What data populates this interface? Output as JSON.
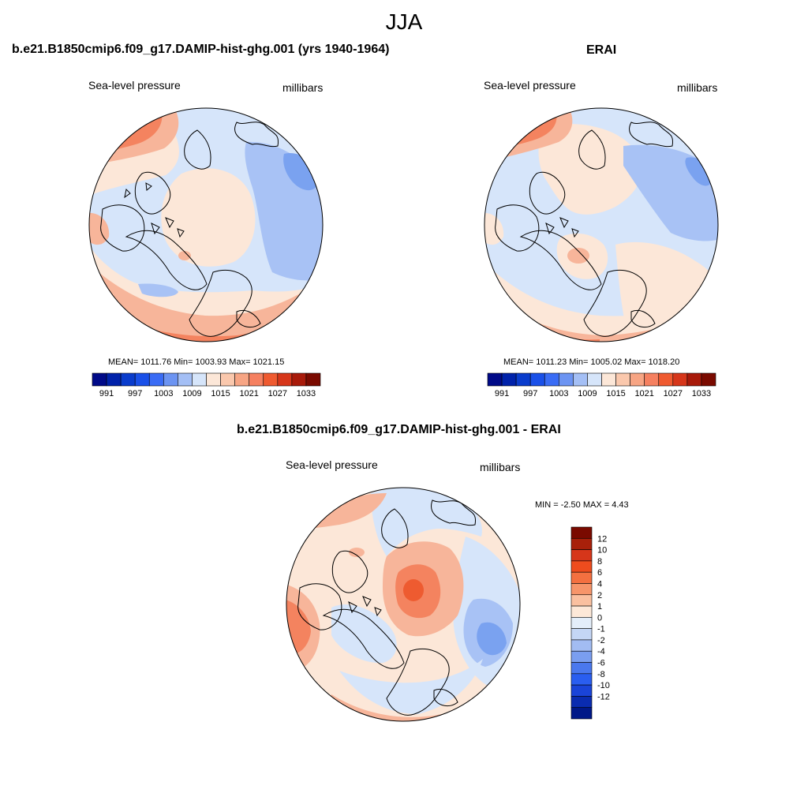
{
  "figure": {
    "season": "JJA"
  },
  "panels": [
    {
      "title": "b.e21.B1850cmip6.f09_g17.DAMIP-hist-ghg.001 (yrs 1940-1964)",
      "left_label": "Sea-level pressure",
      "right_label": "millibars",
      "stats": "MEAN= 1011.76  Min= 1003.93  Max= 1021.15"
    },
    {
      "title": "ERAI",
      "left_label": "Sea-level pressure",
      "right_label": "millibars",
      "stats": "MEAN= 1011.23  Min= 1005.02  Max= 1018.20"
    },
    {
      "title": "b.e21.B1850cmip6.f09_g17.DAMIP-hist-ghg.001 - ERAI",
      "left_label": "Sea-level pressure",
      "right_label": "millibars",
      "stats": "MIN =  -2.50 MAX =   4.43"
    }
  ],
  "colorbars": {
    "absolute": {
      "orientation": "horizontal",
      "colors": [
        "#000a88",
        "#0022aa",
        "#0a3ccc",
        "#1a50e8",
        "#3a6cf5",
        "#6c94f2",
        "#a4bff5",
        "#d6e5fa",
        "#fce7d8",
        "#fac8ad",
        "#f7a584",
        "#f58060",
        "#ef5a30",
        "#d6361a",
        "#a81a0a",
        "#7a0a00"
      ],
      "tick_labels": [
        "991",
        "997",
        "1003",
        "1009",
        "1015",
        "1021",
        "1027",
        "1033"
      ]
    },
    "difference": {
      "orientation": "vertical",
      "colors": [
        "#7a0a00",
        "#a8200a",
        "#d6361a",
        "#ee4c1e",
        "#f47040",
        "#f7956a",
        "#fac0a0",
        "#fde8d8",
        "#e4eefa",
        "#c4d6f5",
        "#a2bcf2",
        "#7a9ef0",
        "#4a78ee",
        "#2a5ef0",
        "#1a44d8",
        "#0a2cb0",
        "#001888"
      ],
      "tick_labels": [
        "12",
        "10",
        "8",
        "6",
        "4",
        "2",
        "1",
        "0",
        "-1",
        "-2",
        "-4",
        "-6",
        "-8",
        "-10",
        "-12"
      ]
    }
  },
  "map_colors": {
    "coast": "#000000",
    "blue_dark": "#7aa2f0",
    "blue_mid": "#a8c2f5",
    "blue_light": "#d6e5fa",
    "peach": "#fce7d8",
    "salmon": "#f7b59a",
    "orange": "#f4835f",
    "red_orange": "#ee5b30"
  }
}
